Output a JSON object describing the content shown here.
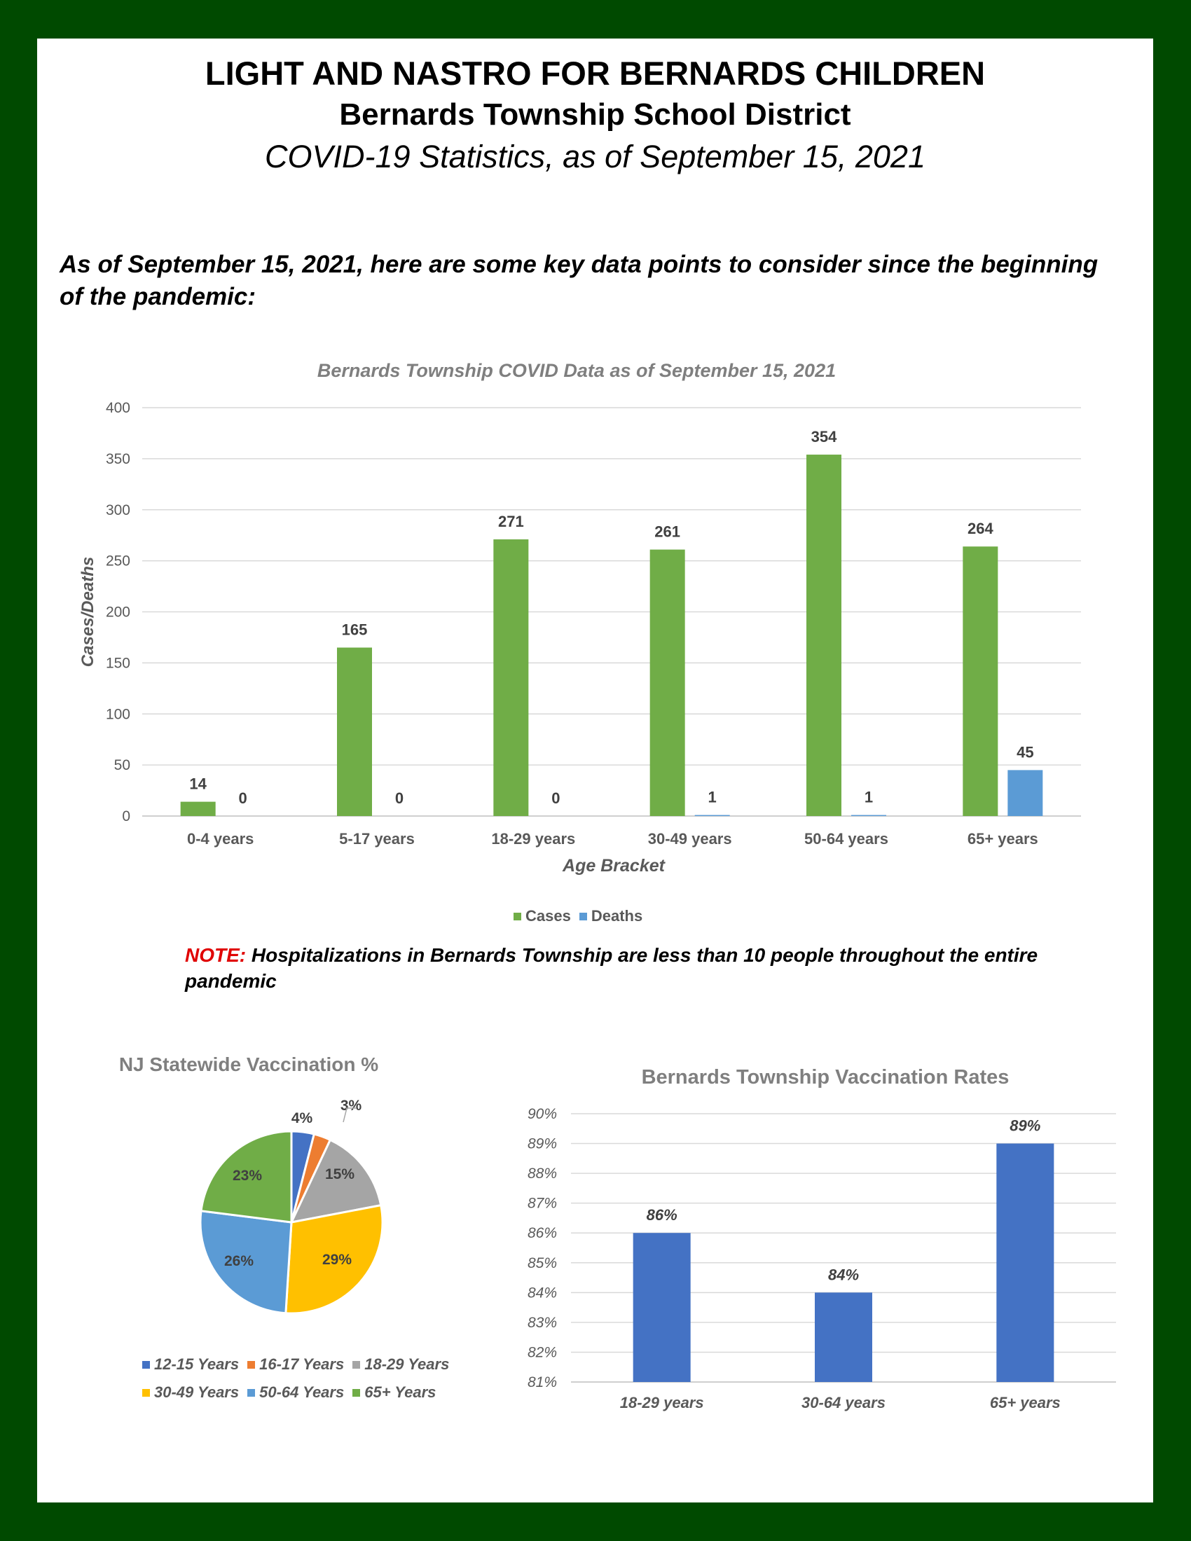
{
  "header": {
    "title": "LIGHT AND NASTRO FOR BERNARDS CHILDREN",
    "subtitle": "Bernards Township School District",
    "subheading": "COVID-19 Statistics, as of September 15, 2021"
  },
  "intro_text": "As of September 15, 2021, here are some key data points to consider since the beginning of the pandemic:",
  "note": {
    "label": "NOTE:",
    "text": " Hospitalizations in Bernards Township are less than 10 people throughout the entire pandemic"
  },
  "colors": {
    "cases": "#70ad47",
    "deaths": "#5b9bd5",
    "vaccination_bars": "#4472c4",
    "page_border": "#004a00"
  },
  "chart_data": [
    {
      "type": "bar",
      "title": "Bernards Township COVID Data as of September 15, 2021",
      "xlabel": "Age Bracket",
      "ylabel": "Cases/Deaths",
      "ylim": [
        0,
        400
      ],
      "yticks": [
        "0",
        "50",
        "100",
        "150",
        "200",
        "250",
        "300",
        "350",
        "400"
      ],
      "categories": [
        "0-4 years",
        "5-17 years",
        "18-29 years",
        "30-49 years",
        "50-64 years",
        "65+ years"
      ],
      "series": [
        {
          "name": "Cases",
          "values": [
            14,
            165,
            271,
            261,
            354,
            264
          ]
        },
        {
          "name": "Deaths",
          "values": [
            0,
            0,
            0,
            1,
            1,
            45
          ]
        }
      ],
      "grid": true,
      "legend": "bottom"
    },
    {
      "type": "pie",
      "title": "NJ Statewide Vaccination %",
      "labels": [
        "12-15 Years",
        "16-17 Years",
        "18-29 Years",
        "30-49 Years",
        "50-64 Years",
        "65+ Years"
      ],
      "values": [
        4,
        3,
        15,
        29,
        26,
        23
      ],
      "data_labels": [
        "4%",
        "3%",
        "15%",
        "29%",
        "26%",
        "23%"
      ],
      "colors": [
        "#4472c4",
        "#ed7d31",
        "#a5a5a5",
        "#ffc000",
        "#5b9bd5",
        "#70ad47"
      ],
      "legend": "bottom"
    },
    {
      "type": "bar",
      "title": "Bernards Township Vaccination Rates",
      "categories": [
        "18-29 years",
        "30-64 years",
        "65+ years"
      ],
      "values": [
        86,
        84,
        89
      ],
      "data_labels": [
        "86%",
        "84%",
        "89%"
      ],
      "ylim": [
        81,
        90
      ],
      "yticks": [
        "81%",
        "82%",
        "83%",
        "84%",
        "85%",
        "86%",
        "87%",
        "88%",
        "89%",
        "90%"
      ],
      "grid": true
    }
  ]
}
